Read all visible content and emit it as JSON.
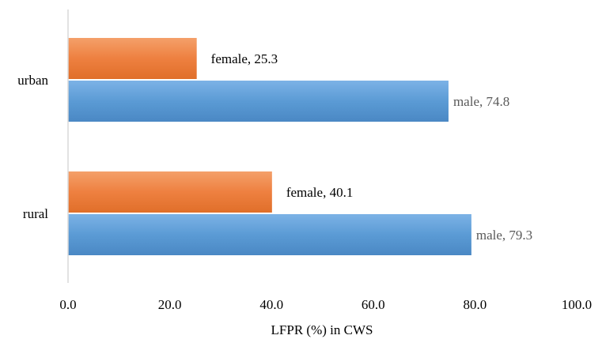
{
  "chart_data": {
    "type": "bar",
    "orientation": "horizontal",
    "xlabel": "LFPR (%) in CWS",
    "ylabel": "",
    "xlim": [
      0,
      100
    ],
    "x_ticks": [
      "0.0",
      "20.0",
      "40.0",
      "60.0",
      "80.0",
      "100.0"
    ],
    "categories": [
      "urban",
      "rural"
    ],
    "series": [
      {
        "key": "female",
        "values": [
          25.3,
          40.1
        ],
        "labels": [
          "female, 25.3",
          "female, 40.1"
        ],
        "color": "#ed7d31"
      },
      {
        "key": "male",
        "values": [
          74.8,
          79.3
        ],
        "labels": [
          "male, 74.8",
          "male, 79.3"
        ],
        "color": "#5b9bd5"
      }
    ],
    "grid": false,
    "legend": "none"
  }
}
